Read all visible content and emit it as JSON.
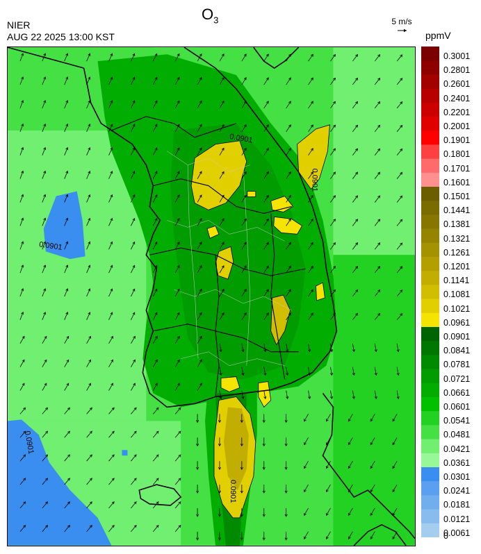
{
  "header": {
    "agency": "NIER",
    "datetime": "AUG 22 2025 13:00 KST",
    "title_main": "O",
    "title_sub": "3",
    "wind_reference": "5 m/s",
    "unit": "ppmV"
  },
  "map": {
    "contour_label": "0.0901",
    "icons": [
      "wind-vector-arrow",
      "coastline",
      "province-boundary"
    ]
  },
  "legend": {
    "labels": [
      "0.3001",
      "0.2801",
      "0.2601",
      "0.2401",
      "0.2201",
      "0.2001",
      "0.1901",
      "0.1801",
      "0.1701",
      "0.1601",
      "0.1501",
      "0.1441",
      "0.1381",
      "0.1321",
      "0.1261",
      "0.1201",
      "0.1141",
      "0.1081",
      "0.1021",
      "0.0961",
      "0.0901",
      "0.0841",
      "0.0781",
      "0.0721",
      "0.0661",
      "0.0601",
      "0.0541",
      "0.0481",
      "0.0421",
      "0.0361",
      "0.0301",
      "0.0241",
      "0.0181",
      "0.0121",
      "0.0061",
      "0"
    ],
    "colors": [
      "#7a0000",
      "#8e0000",
      "#a30000",
      "#b80000",
      "#cd0000",
      "#e00000",
      "#ff0000",
      "#ff4040",
      "#ff6a6a",
      "#ff9090",
      "#6b5e00",
      "#7a6c00",
      "#877700",
      "#958400",
      "#a49200",
      "#b3a000",
      "#c2ae00",
      "#d2be00",
      "#e2cf00",
      "#f4e400",
      "#006400",
      "#007800",
      "#008a00",
      "#009c00",
      "#00ad00",
      "#00c000",
      "#22d122",
      "#44e044",
      "#70ef70",
      "#98f898",
      "#3a8ef0",
      "#5a9ff0",
      "#70aeee",
      "#88bcee",
      "#a4cdef"
    ]
  }
}
